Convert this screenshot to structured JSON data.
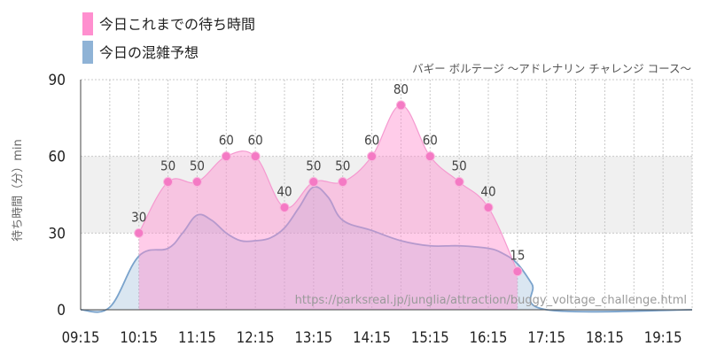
{
  "legend": {
    "items": [
      {
        "label": "今日これまでの待ち時間",
        "color": "#ff8fcf"
      },
      {
        "label": "今日の混雑予想",
        "color": "#8fb3d6"
      }
    ]
  },
  "chart_data": {
    "type": "area",
    "subtitle": "バギー ボルテージ 〜アドレナリン チャレンジ コース〜",
    "ylabel": "待ち時間（分）min",
    "ylim": [
      0,
      90
    ],
    "yticks": [
      0,
      30,
      60,
      90
    ],
    "xlim": [
      "09:15",
      "19:45"
    ],
    "xticks": [
      "09:15",
      "10:15",
      "11:15",
      "12:15",
      "13:15",
      "14:15",
      "15:15",
      "16:15",
      "17:15",
      "18:15",
      "19:15"
    ],
    "shaded_band": [
      30,
      60
    ],
    "grid": true,
    "watermark": "https://parksreal.jp/junglia/attraction/buggy_voltage_challenge.html",
    "series": [
      {
        "name": "今日これまでの待ち時間",
        "color": "#ff8fcf",
        "x": [
          "10:15",
          "10:45",
          "11:15",
          "11:45",
          "12:15",
          "12:45",
          "13:15",
          "13:45",
          "14:15",
          "14:45",
          "15:15",
          "15:45",
          "16:15",
          "16:45"
        ],
        "values": [
          30,
          50,
          50,
          60,
          60,
          40,
          50,
          50,
          60,
          80,
          60,
          50,
          40,
          15
        ]
      },
      {
        "name": "今日の混雑予想",
        "color": "#8fb3d6",
        "x": [
          "09:15",
          "09:45",
          "10:15",
          "10:45",
          "11:00",
          "11:15",
          "11:30",
          "11:45",
          "12:00",
          "12:15",
          "12:30",
          "12:45",
          "13:00",
          "13:15",
          "13:30",
          "13:45",
          "14:15",
          "14:45",
          "15:15",
          "15:45",
          "16:15",
          "16:30",
          "16:45",
          "17:00",
          "17:15",
          "19:45"
        ],
        "values": [
          0,
          1,
          21,
          24,
          30,
          37,
          35,
          30,
          27,
          27,
          28,
          32,
          40,
          48,
          44,
          35,
          31,
          27,
          25,
          25,
          24,
          22,
          18,
          10,
          0,
          0
        ]
      }
    ]
  }
}
